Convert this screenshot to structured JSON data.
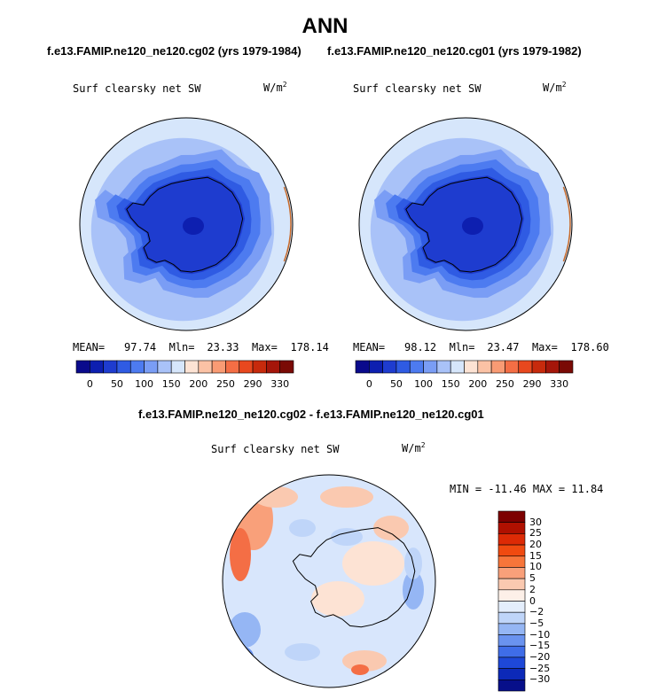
{
  "figure": {
    "title": "ANN",
    "diff_title": "f.e13.FAMIP.ne120_ne120.cg02 - f.e13.FAMIP.ne120_ne120.cg01"
  },
  "panels": [
    {
      "subtitle": "f.e13.FAMIP.ne120_ne120.cg02 (yrs 1979-1984)",
      "variable": "Surf clearsky net SW",
      "units_base": "W/m",
      "units_exp": "2",
      "stats": {
        "mean_label": "MEAN=",
        "mean": "97.74",
        "min_label": "Mln=",
        "min": "23.33",
        "max_label": "Max=",
        "max": "178.14"
      }
    },
    {
      "subtitle": "f.e13.FAMIP.ne120_ne120.cg01 (yrs 1979-1982)",
      "variable": "Surf clearsky net SW",
      "units_base": "W/m",
      "units_exp": "2",
      "stats": {
        "mean_label": "MEAN=",
        "mean": "98.12",
        "min_label": "Mln=",
        "min": "23.47",
        "max_label": "Max=",
        "max": "178.60"
      }
    }
  ],
  "diff_panel": {
    "variable": "Surf clearsky net SW",
    "units_base": "W/m",
    "units_exp": "2",
    "minmax": "MIN = -11.46 MAX =  11.84"
  },
  "abs_colorbar": {
    "colors": [
      "#0a0a8c",
      "#0d1fb0",
      "#1e3ccf",
      "#2f5be3",
      "#4d7bf0",
      "#7a9df5",
      "#a9c2f8",
      "#d6e6fb",
      "#fde3d4",
      "#fbc2a5",
      "#f99b74",
      "#f46e45",
      "#e8481e",
      "#c72a0c",
      "#a5160a",
      "#7a0a05"
    ],
    "tick_labels": [
      "0",
      "50",
      "100",
      "150",
      "200",
      "250",
      "290",
      "330"
    ]
  },
  "diff_colorbar": {
    "colors": [
      "#7d0000",
      "#b01000",
      "#dd2a05",
      "#f04a10",
      "#f7753a",
      "#f9a07a",
      "#fac9b0",
      "#fdf0e8",
      "#e4eefc",
      "#bfd5f9",
      "#95b6f4",
      "#6a93ef",
      "#3f6de8",
      "#1e48d8",
      "#0c29b8",
      "#070f8a"
    ],
    "tick_labels": [
      "30",
      "25",
      "20",
      "15",
      "10",
      "5",
      "2",
      "0",
      "−2",
      "−5",
      "−10",
      "−15",
      "−20",
      "−25",
      "−30"
    ]
  }
}
